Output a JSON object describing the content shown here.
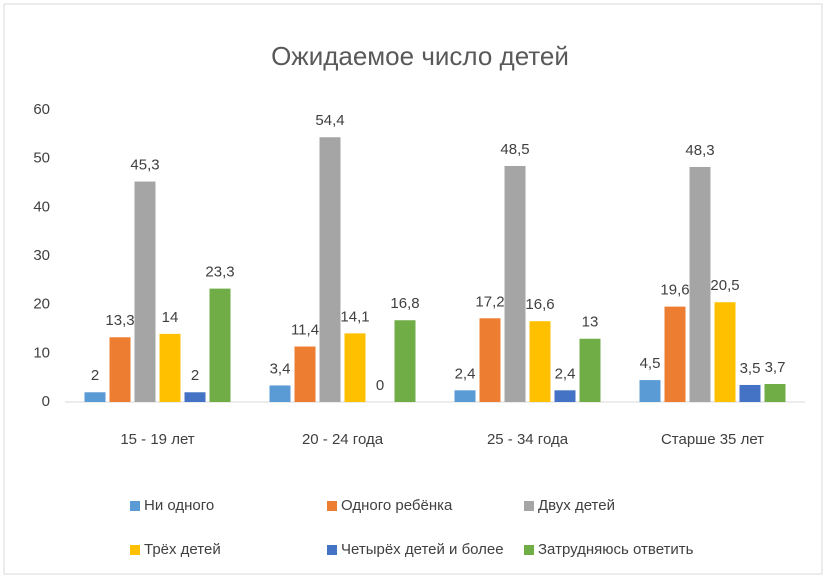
{
  "chart_data": {
    "type": "bar",
    "title": "Ожидаемое число детей",
    "categories": [
      "15 - 19 лет",
      "20 - 24 года",
      "25 - 34 года",
      "Старше 35 лет"
    ],
    "series": [
      {
        "name": "Ни одного",
        "color": "#5b9bd5",
        "values": [
          2,
          3.4,
          2.4,
          4.5
        ],
        "value_labels": [
          "2",
          "3,4",
          "2,4",
          "4,5"
        ]
      },
      {
        "name": "Одного ребёнка",
        "color": "#ed7d31",
        "values": [
          13.3,
          11.4,
          17.2,
          19.6
        ],
        "value_labels": [
          "13,3",
          "11,4",
          "17,2",
          "19,6"
        ]
      },
      {
        "name": "Двух детей",
        "color": "#a5a5a5",
        "values": [
          45.3,
          54.4,
          48.5,
          48.3
        ],
        "value_labels": [
          "45,3",
          "54,4",
          "48,5",
          "48,3"
        ]
      },
      {
        "name": "Трёх детей",
        "color": "#ffc000",
        "values": [
          14,
          14.1,
          16.6,
          20.5
        ],
        "value_labels": [
          "14",
          "14,1",
          "16,6",
          "20,5"
        ]
      },
      {
        "name": "Четырёх детей и более",
        "color": "#4472c4",
        "values": [
          2,
          0,
          2.4,
          3.5
        ],
        "value_labels": [
          "2",
          "0",
          "2,4",
          "3,5"
        ]
      },
      {
        "name": "Затрудняюсь ответить",
        "color": "#70ad47",
        "values": [
          23.3,
          16.8,
          13,
          3.7
        ],
        "value_labels": [
          "23,3",
          "16,8",
          "13",
          "3,7"
        ]
      }
    ],
    "ylim": [
      0,
      60
    ],
    "yticks": [
      0,
      10,
      20,
      30,
      40,
      50,
      60
    ],
    "grid": false,
    "legend": "bottom"
  }
}
